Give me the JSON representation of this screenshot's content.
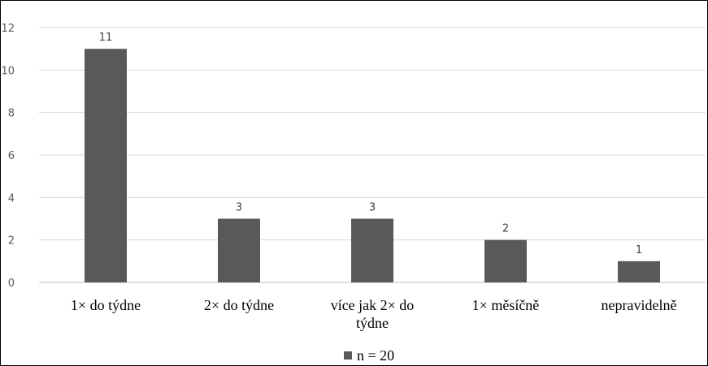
{
  "chart_data": {
    "type": "bar",
    "categories": [
      "1× do týdne",
      "2× do týdne",
      "více jak 2× do týdne",
      "1× měsíčně",
      "nepravidelně"
    ],
    "category_lines": [
      [
        "1× do týdne"
      ],
      [
        "2× do týdne"
      ],
      [
        "více jak 2× do",
        "týdne"
      ],
      [
        "1× měsíčně"
      ],
      [
        "nepravidelně"
      ]
    ],
    "series": [
      {
        "name": "n = 20",
        "values": [
          11,
          3,
          3,
          2,
          1
        ]
      }
    ],
    "ylim": [
      0,
      12
    ],
    "yticks": [
      0,
      2,
      4,
      6,
      8,
      10,
      12
    ],
    "grid": true,
    "legend": "bottom",
    "bar_color": "#595959",
    "grid_color": "#d9d9d9"
  }
}
